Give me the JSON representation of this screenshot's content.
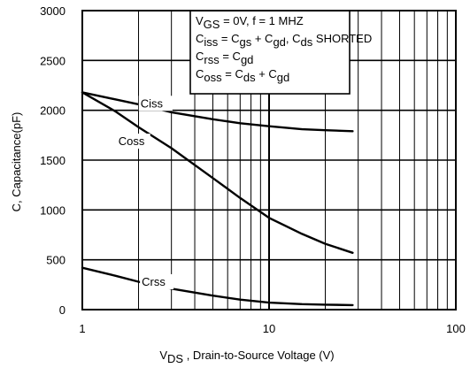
{
  "chart_data": {
    "type": "line",
    "x_scale": "log",
    "xlim": [
      1,
      100
    ],
    "ylim": [
      0,
      3000
    ],
    "grid": true,
    "x_ticks": [
      {
        "value": 1,
        "label": "1"
      },
      {
        "value": 10,
        "label": "10"
      },
      {
        "value": 100,
        "label": "100"
      }
    ],
    "y_ticks": [
      {
        "value": 0,
        "label": "0"
      },
      {
        "value": 500,
        "label": "500"
      },
      {
        "value": 1000,
        "label": "1000"
      },
      {
        "value": 1500,
        "label": "1500"
      },
      {
        "value": 2000,
        "label": "2000"
      },
      {
        "value": 2500,
        "label": "2500"
      },
      {
        "value": 3000,
        "label": "3000"
      }
    ],
    "xlabel": {
      "main": "V",
      "sub": "DS",
      "rest": " , Drain-to-Source Voltage (V)"
    },
    "ylabel": "C, Capacitance(pF)",
    "series": [
      {
        "name": "Ciss",
        "color": "#000000",
        "x": [
          1,
          2,
          3,
          5,
          7,
          10,
          15,
          20,
          28
        ],
        "y": [
          2180,
          2060,
          1980,
          1910,
          1870,
          1840,
          1810,
          1800,
          1790
        ]
      },
      {
        "name": "Coss",
        "color": "#000000",
        "x": [
          1,
          1.5,
          2,
          3,
          5,
          7,
          10,
          15,
          20,
          28
        ],
        "y": [
          2180,
          1990,
          1830,
          1620,
          1320,
          1120,
          920,
          760,
          660,
          570
        ]
      },
      {
        "name": "Crss",
        "color": "#000000",
        "x": [
          1,
          1.5,
          2,
          3,
          5,
          7,
          10,
          15,
          20,
          28
        ],
        "y": [
          420,
          340,
          280,
          210,
          140,
          100,
          70,
          55,
          50,
          45
        ]
      }
    ],
    "annotation": {
      "lines": [
        [
          {
            "t": "V"
          },
          {
            "t": "GS",
            "sub": true
          },
          {
            "t": " = 0V,     f = 1 MHZ"
          }
        ],
        [
          {
            "t": "C"
          },
          {
            "t": "iss",
            "sub": true
          },
          {
            "t": " = C"
          },
          {
            "t": "gs",
            "sub": true
          },
          {
            "t": " + C"
          },
          {
            "t": "gd",
            "sub": true
          },
          {
            "t": ", C"
          },
          {
            "t": "ds",
            "sub": true
          },
          {
            "t": "  SHORTED"
          }
        ],
        [
          {
            "t": "C"
          },
          {
            "t": "rss",
            "sub": true
          },
          {
            "t": "   = C"
          },
          {
            "t": "gd",
            "sub": true
          }
        ],
        [
          {
            "t": "C"
          },
          {
            "t": "oss",
            "sub": true
          },
          {
            "t": "  = C"
          },
          {
            "t": "ds",
            "sub": true
          },
          {
            "t": " + C"
          },
          {
            "t": "gd",
            "sub": true
          }
        ]
      ]
    }
  }
}
